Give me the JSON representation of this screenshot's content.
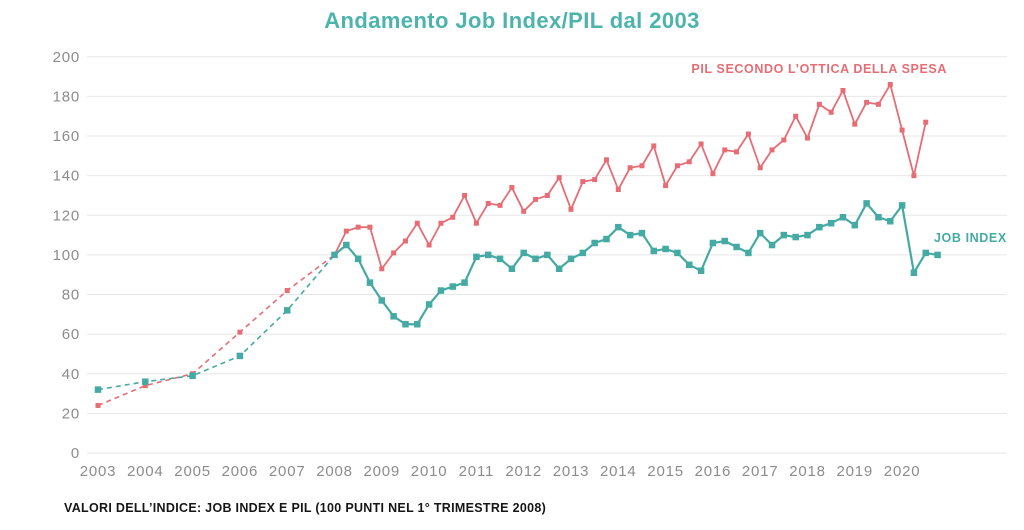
{
  "chart_data": {
    "type": "line",
    "title": "Andamento Job Index/PIL dal 2003",
    "caption": "VALORI DELL’INDICE: JOB INDEX E PIL (100 PUNTI NEL 1° TRIMESTRE 2008)",
    "ylim": [
      0,
      200
    ],
    "yticks": [
      0,
      20,
      40,
      60,
      80,
      100,
      120,
      140,
      160,
      180,
      200
    ],
    "xtick_labels": [
      "2003",
      "2004",
      "2005",
      "2006",
      "2007",
      "2008",
      "2009",
      "2010",
      "2011",
      "2012",
      "2013",
      "2014",
      "2015",
      "2016",
      "2017",
      "2018",
      "2019",
      "2020"
    ],
    "grid": true,
    "legend_position": "inline-labels-right",
    "colors": {
      "pil": "#e66d75",
      "job_index": "#45aaa3",
      "title": "#4cb3ad",
      "axis_text": "#8c8c8c",
      "gridline": "#e7e7e7",
      "caption": "#161616"
    },
    "series": [
      {
        "name": "PIL SECONDO L’OTTICA DELLA SPESA",
        "color": "#e66d75",
        "annual_years": [
          2003,
          2004,
          2005,
          2006,
          2007
        ],
        "annual_values": [
          24,
          34,
          40,
          61,
          82
        ],
        "quarterly_start_year": 2008,
        "quarterly_values": [
          100,
          112,
          114,
          114,
          93,
          101,
          107,
          116,
          105,
          116,
          119,
          130,
          116,
          126,
          125,
          134,
          122,
          128,
          130,
          139,
          123,
          137,
          138,
          148,
          133,
          144,
          145,
          155,
          135,
          145,
          147,
          156,
          141,
          153,
          152,
          161,
          144,
          153,
          158,
          170,
          159,
          176,
          172,
          183,
          166,
          177,
          176,
          186,
          163,
          140,
          167
        ]
      },
      {
        "name": "JOB INDEX",
        "color": "#45aaa3",
        "annual_years": [
          2003,
          2004,
          2005,
          2006,
          2007
        ],
        "annual_values": [
          32,
          36,
          39,
          49,
          72
        ],
        "quarterly_start_year": 2008,
        "quarterly_values": [
          100,
          105,
          98,
          86,
          77,
          69,
          65,
          65,
          75,
          82,
          84,
          86,
          99,
          100,
          98,
          93,
          101,
          98,
          100,
          93,
          98,
          101,
          106,
          108,
          114,
          110,
          111,
          102,
          103,
          101,
          95,
          92,
          106,
          107,
          104,
          101,
          111,
          105,
          110,
          109,
          110,
          114,
          116,
          119,
          115,
          126,
          119,
          117,
          125,
          91,
          101,
          100
        ]
      }
    ]
  }
}
